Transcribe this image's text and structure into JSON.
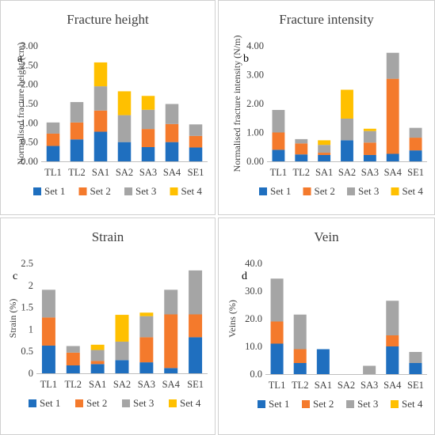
{
  "chart_data": [
    {
      "type": "bar",
      "stacked": true,
      "panel_label": "a",
      "title": "Fracture height",
      "ylabel": "Normalised fracture height (cm)",
      "xlabel": "",
      "categories": [
        "TL1",
        "TL2",
        "SA1",
        "SA2",
        "SA3",
        "SA4",
        "SE1"
      ],
      "ylim": [
        0,
        3
      ],
      "yticks": [
        "0.00",
        "0.50",
        "1.00",
        "1.50",
        "2.00",
        "2.50",
        "3.00"
      ],
      "grid": false,
      "legend": "bottom",
      "series": [
        {
          "name": "Set 1",
          "color": "#1f6fbf",
          "values": [
            0.4,
            0.57,
            0.77,
            0.5,
            0.37,
            0.5,
            0.36
          ]
        },
        {
          "name": "Set 2",
          "color": "#f47a2c",
          "values": [
            0.32,
            0.44,
            0.55,
            0.0,
            0.47,
            0.47,
            0.3
          ]
        },
        {
          "name": "Set 3",
          "color": "#a5a5a5",
          "values": [
            0.29,
            0.53,
            0.63,
            0.7,
            0.5,
            0.52,
            0.3
          ]
        },
        {
          "name": "Set 4",
          "color": "#ffc000",
          "values": [
            0.0,
            0.0,
            0.62,
            0.62,
            0.36,
            0.0,
            0.0
          ]
        }
      ]
    },
    {
      "type": "bar",
      "stacked": true,
      "panel_label": "b",
      "title": "Fracture intensity",
      "ylabel": "Normalised fracture intensity (N/m)",
      "xlabel": "",
      "categories": [
        "TL1",
        "TL2",
        "SA1",
        "SA2",
        "SA3",
        "SA4",
        "SE1"
      ],
      "ylim": [
        0,
        4
      ],
      "yticks": [
        "0.00",
        "1.00",
        "2.00",
        "3.00",
        "4.00"
      ],
      "grid": false,
      "legend": "bottom",
      "series": [
        {
          "name": "Set 1",
          "color": "#1f6fbf",
          "values": [
            0.4,
            0.24,
            0.22,
            0.73,
            0.22,
            0.26,
            0.38
          ]
        },
        {
          "name": "Set 2",
          "color": "#f47a2c",
          "values": [
            0.6,
            0.38,
            0.08,
            0.0,
            0.43,
            2.6,
            0.44
          ]
        },
        {
          "name": "Set 3",
          "color": "#a5a5a5",
          "values": [
            0.78,
            0.15,
            0.27,
            0.75,
            0.4,
            0.9,
            0.34
          ]
        },
        {
          "name": "Set 4",
          "color": "#ffc000",
          "values": [
            0.0,
            0.0,
            0.16,
            1.0,
            0.08,
            0.0,
            0.0
          ]
        }
      ]
    },
    {
      "type": "bar",
      "stacked": true,
      "panel_label": "c",
      "title": "Strain",
      "ylabel": "Strain (%)",
      "xlabel": "",
      "categories": [
        "TL1",
        "TL2",
        "SA1",
        "SA2",
        "SA3",
        "SA4",
        "SE1"
      ],
      "ylim": [
        0,
        2.5
      ],
      "yticks": [
        "0",
        "0.5",
        "1",
        "1.5",
        "2",
        "2.5"
      ],
      "grid": false,
      "legend": "bottom",
      "series": [
        {
          "name": "Set 1",
          "color": "#1f6fbf",
          "values": [
            0.63,
            0.18,
            0.21,
            0.3,
            0.25,
            0.12,
            0.82
          ]
        },
        {
          "name": "Set 2",
          "color": "#f47a2c",
          "values": [
            0.64,
            0.29,
            0.07,
            0.0,
            0.57,
            1.22,
            0.52
          ]
        },
        {
          "name": "Set 3",
          "color": "#a5a5a5",
          "values": [
            0.63,
            0.15,
            0.25,
            0.42,
            0.48,
            0.56,
            1.0
          ]
        },
        {
          "name": "Set 4",
          "color": "#ffc000",
          "values": [
            0.0,
            0.0,
            0.12,
            0.61,
            0.08,
            0.0,
            0.0
          ]
        }
      ]
    },
    {
      "type": "bar",
      "stacked": true,
      "panel_label": "d",
      "title": "Vein",
      "ylabel": "Veins (%)",
      "xlabel": "",
      "categories": [
        "TL1",
        "TL2",
        "SA1",
        "SA2",
        "SA3",
        "SA4",
        "SE1"
      ],
      "ylim": [
        0,
        40
      ],
      "yticks": [
        "0.0",
        "10.0",
        "20.0",
        "30.0",
        "40.0"
      ],
      "grid": false,
      "legend": "bottom",
      "series": [
        {
          "name": "Set 1",
          "color": "#1f6fbf",
          "values": [
            11.0,
            4.0,
            9.0,
            0.0,
            0.0,
            10.0,
            4.0
          ]
        },
        {
          "name": "Set 2",
          "color": "#f47a2c",
          "values": [
            8.0,
            5.0,
            0.0,
            0.0,
            0.0,
            4.0,
            0.0
          ]
        },
        {
          "name": "Set 3",
          "color": "#a5a5a5",
          "values": [
            15.5,
            12.5,
            0.0,
            0.0,
            3.0,
            12.5,
            4.0
          ]
        },
        {
          "name": "Set 4",
          "color": "#ffc000",
          "values": [
            0.0,
            0.0,
            0.0,
            0.0,
            0.0,
            0.0,
            0.0
          ]
        }
      ]
    }
  ]
}
